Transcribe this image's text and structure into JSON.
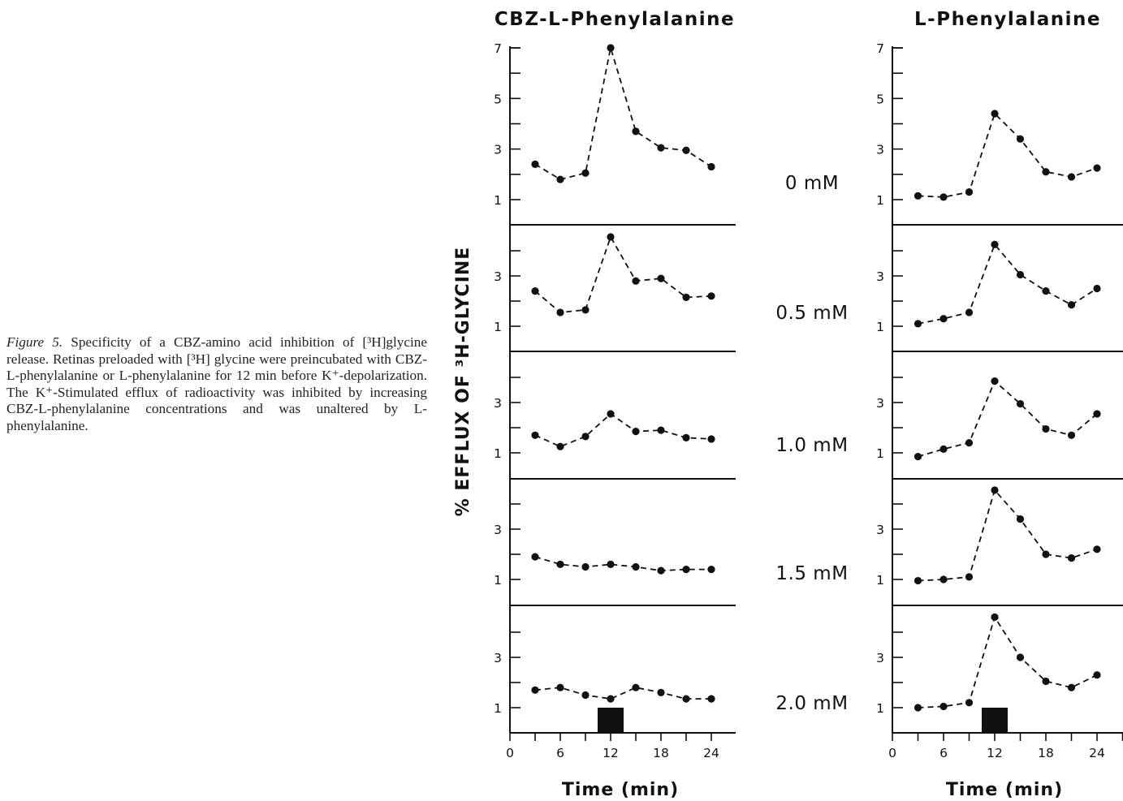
{
  "caption": {
    "label": "Figure 5.",
    "text": "Specificity of a CBZ-amino acid inhibition of [³H]glycine release. Retinas preloaded with [³H] glycine were preincubated with CBZ-L-phenylalanine or L-phenylalanine for 12 min before K⁺-depolarization. The K⁺-Stimulated efflux of radioactivity was inhibited by increasing CBZ-L-phenylalanine concentrations and was unaltered by L-phenylalanine."
  },
  "colors": {
    "ink": "#111111",
    "background": "#ffffff"
  },
  "chart_data": {
    "type": "line",
    "ylabel": "% EFFLUX OF ³H-GLYCINE",
    "xlabel": "Time (min)",
    "x": [
      3,
      6,
      9,
      12,
      15,
      18,
      21,
      24
    ],
    "x_ticks": [
      "0",
      "6",
      "12",
      "18",
      "24"
    ],
    "xlim": [
      0,
      24
    ],
    "y_ticks_top": [
      "1",
      "3",
      "5",
      "7"
    ],
    "y_ticks_lower": [
      "1",
      "3"
    ],
    "concentrations": [
      "0 mM",
      "0.5 mM",
      "1.0 mM",
      "1.5 mM",
      "2.0 mM"
    ],
    "stimulus": "K+ depolarization at 12 min (black bar)",
    "panels": [
      {
        "title": "CBZ-L-Phenylalanine",
        "rows": [
          {
            "concentration": "0 mM",
            "ylim": [
              0,
              7
            ],
            "values": [
              2.4,
              1.8,
              2.05,
              7.0,
              3.7,
              3.05,
              2.95,
              2.3
            ]
          },
          {
            "concentration": "0.5 mM",
            "ylim": [
              0,
              4.8
            ],
            "values": [
              2.4,
              1.55,
              1.65,
              4.55,
              2.8,
              2.9,
              2.15,
              2.2
            ]
          },
          {
            "concentration": "1.0 mM",
            "ylim": [
              0,
              4.8
            ],
            "values": [
              1.7,
              1.25,
              1.65,
              2.55,
              1.85,
              1.9,
              1.6,
              1.55
            ]
          },
          {
            "concentration": "1.5 mM",
            "ylim": [
              0,
              4.8
            ],
            "values": [
              1.9,
              1.6,
              1.5,
              1.6,
              1.5,
              1.35,
              1.4,
              1.4
            ]
          },
          {
            "concentration": "2.0 mM",
            "ylim": [
              0,
              4.8
            ],
            "values": [
              1.7,
              1.8,
              1.5,
              1.35,
              1.8,
              1.6,
              1.35,
              1.35
            ]
          }
        ]
      },
      {
        "title": "L-Phenylalanine",
        "rows": [
          {
            "concentration": "0 mM",
            "ylim": [
              0,
              7
            ],
            "values": [
              1.15,
              1.1,
              1.3,
              4.4,
              3.4,
              2.1,
              1.9,
              2.25
            ]
          },
          {
            "concentration": "0.5 mM",
            "ylim": [
              0,
              4.8
            ],
            "values": [
              1.1,
              1.3,
              1.55,
              4.25,
              3.05,
              2.4,
              1.85,
              2.5
            ]
          },
          {
            "concentration": "1.0 mM",
            "ylim": [
              0,
              4.8
            ],
            "values": [
              0.85,
              1.15,
              1.4,
              3.85,
              2.95,
              1.95,
              1.7,
              2.55
            ]
          },
          {
            "concentration": "1.5 mM",
            "ylim": [
              0,
              4.8
            ],
            "values": [
              0.95,
              1.0,
              1.1,
              4.55,
              3.4,
              2.0,
              1.85,
              2.2
            ]
          },
          {
            "concentration": "2.0 mM",
            "ylim": [
              0,
              4.8
            ],
            "values": [
              1.0,
              1.05,
              1.2,
              4.6,
              3.0,
              2.05,
              1.8,
              2.3
            ]
          }
        ]
      }
    ]
  }
}
